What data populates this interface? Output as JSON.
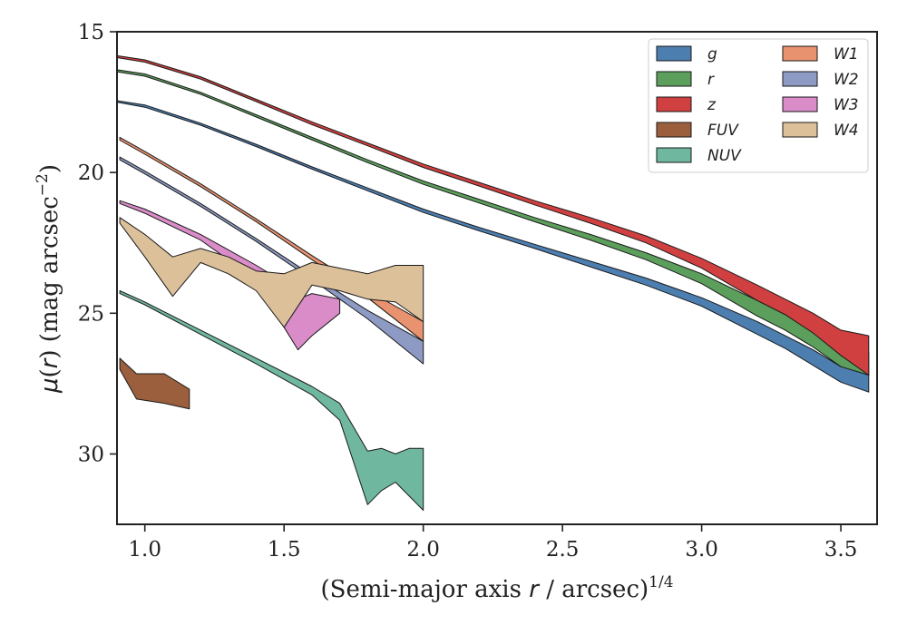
{
  "chart_data": {
    "type": "area",
    "xlabel_prefix": "(Semi-major axis ",
    "xlabel_var": "r",
    "xlabel_suffix": " / arcsec)",
    "xlabel_exp": "1/4",
    "ylabel_func": "μ",
    "ylabel_paren_open": "(",
    "ylabel_var": "r",
    "ylabel_paren_close": ")",
    "ylabel_unit": " (mag arcsec",
    "ylabel_exp": "−2",
    "ylabel_close": ")",
    "xlim": [
      0.9,
      3.63
    ],
    "ylim": [
      15.0,
      32.5
    ],
    "y_inverted": true,
    "xticks": [
      "1.0",
      "1.5",
      "2.0",
      "2.5",
      "3.0",
      "3.5"
    ],
    "xtick_values": [
      1.0,
      1.5,
      2.0,
      2.5,
      3.0,
      3.5
    ],
    "yticks": [
      "15",
      "20",
      "25",
      "30"
    ],
    "ytick_values": [
      15,
      20,
      25,
      30
    ],
    "legend_position": "top-right",
    "legend_columns": 2,
    "series": [
      {
        "name": "g",
        "color": "#4c7eb0",
        "x": [
          0.9,
          1.0,
          1.2,
          1.4,
          1.6,
          1.8,
          2.0,
          2.2,
          2.4,
          2.6,
          2.8,
          3.0,
          3.2,
          3.3,
          3.4,
          3.5,
          3.6
        ],
        "lo": [
          17.45,
          17.6,
          18.25,
          19.0,
          19.8,
          20.55,
          21.3,
          21.95,
          22.55,
          23.15,
          23.75,
          24.45,
          25.3,
          25.8,
          26.3,
          26.9,
          27.15
        ],
        "hi": [
          17.5,
          17.68,
          18.32,
          19.08,
          19.88,
          20.65,
          21.42,
          22.07,
          22.7,
          23.35,
          24.0,
          24.75,
          25.75,
          26.25,
          26.85,
          27.45,
          27.8
        ]
      },
      {
        "name": "r",
        "color": "#5c9e5c",
        "x": [
          0.9,
          1.0,
          1.2,
          1.4,
          1.6,
          1.8,
          2.0,
          2.2,
          2.4,
          2.6,
          2.8,
          3.0,
          3.2,
          3.3,
          3.4,
          3.5,
          3.6
        ],
        "lo": [
          16.35,
          16.5,
          17.15,
          17.95,
          18.75,
          19.55,
          20.3,
          20.95,
          21.6,
          22.2,
          22.85,
          23.6,
          24.55,
          25.05,
          25.55,
          26.2,
          26.4
        ],
        "hi": [
          16.42,
          16.58,
          17.22,
          18.03,
          18.84,
          19.65,
          20.42,
          21.08,
          21.75,
          22.4,
          23.1,
          23.95,
          25.1,
          25.6,
          26.2,
          26.9,
          27.2
        ]
      },
      {
        "name": "z",
        "color": "#d04040",
        "x": [
          0.9,
          1.0,
          1.2,
          1.4,
          1.6,
          1.8,
          2.0,
          2.2,
          2.4,
          2.6,
          2.8,
          3.0,
          3.2,
          3.3,
          3.4,
          3.5,
          3.6
        ],
        "lo": [
          15.85,
          16.0,
          16.6,
          17.4,
          18.2,
          18.95,
          19.7,
          20.35,
          21.0,
          21.6,
          22.25,
          23.05,
          24.0,
          24.5,
          25.0,
          25.6,
          25.8
        ],
        "hi": [
          15.92,
          16.08,
          16.68,
          17.48,
          18.3,
          19.05,
          19.82,
          20.48,
          21.15,
          21.8,
          22.5,
          23.4,
          24.55,
          25.05,
          25.7,
          26.5,
          27.2
        ]
      },
      {
        "name": "FUV",
        "color": "#9b5f3d",
        "x": [
          0.91,
          0.97,
          1.07,
          1.16
        ],
        "lo": [
          26.6,
          27.15,
          27.15,
          27.7
        ],
        "hi": [
          27.0,
          28.05,
          28.2,
          28.4
        ]
      },
      {
        "name": "NUV",
        "color": "#6fb89f",
        "x": [
          0.91,
          1.0,
          1.2,
          1.4,
          1.6,
          1.7,
          1.8,
          1.85,
          1.9,
          1.95,
          2.0
        ],
        "lo": [
          24.2,
          24.6,
          25.6,
          26.6,
          27.6,
          28.2,
          29.9,
          29.8,
          30.0,
          29.8,
          29.8
        ],
        "hi": [
          24.3,
          24.7,
          25.75,
          26.8,
          27.9,
          28.8,
          31.8,
          31.3,
          31.0,
          31.5,
          32.0
        ]
      },
      {
        "name": "W1",
        "color": "#e8926f",
        "x": [
          0.91,
          1.0,
          1.2,
          1.4,
          1.6,
          1.8,
          2.0
        ],
        "lo": [
          18.75,
          19.25,
          20.4,
          21.65,
          22.95,
          24.2,
          25.3
        ],
        "hi": [
          18.85,
          19.35,
          20.5,
          21.75,
          23.1,
          24.45,
          26.0
        ]
      },
      {
        "name": "W2",
        "color": "#8d9ac4",
        "x": [
          0.91,
          1.0,
          1.2,
          1.4,
          1.6,
          1.8,
          2.0
        ],
        "lo": [
          19.45,
          19.95,
          21.1,
          22.35,
          23.65,
          24.9,
          26.0
        ],
        "hi": [
          19.55,
          20.05,
          21.2,
          22.45,
          23.8,
          25.2,
          26.8
        ]
      },
      {
        "name": "W3",
        "color": "#d98cc8",
        "x": [
          0.91,
          1.0,
          1.2,
          1.4,
          1.5,
          1.55,
          1.6,
          1.7
        ],
        "lo": [
          21.0,
          21.3,
          22.2,
          23.3,
          23.9,
          24.5,
          24.3,
          24.5
        ],
        "hi": [
          21.1,
          21.45,
          22.4,
          23.8,
          25.5,
          26.3,
          25.8,
          25.0
        ]
      },
      {
        "name": "W4",
        "color": "#dcc09a",
        "x": [
          0.91,
          1.0,
          1.1,
          1.2,
          1.3,
          1.4,
          1.5,
          1.6,
          1.7,
          1.8,
          1.9,
          2.0
        ],
        "lo": [
          21.6,
          22.2,
          23.0,
          22.7,
          23.0,
          23.5,
          23.6,
          23.2,
          23.4,
          23.6,
          23.3,
          23.3
        ],
        "hi": [
          21.8,
          23.0,
          24.4,
          23.2,
          23.6,
          24.2,
          25.5,
          24.0,
          24.2,
          24.5,
          24.6,
          25.3
        ]
      }
    ]
  }
}
